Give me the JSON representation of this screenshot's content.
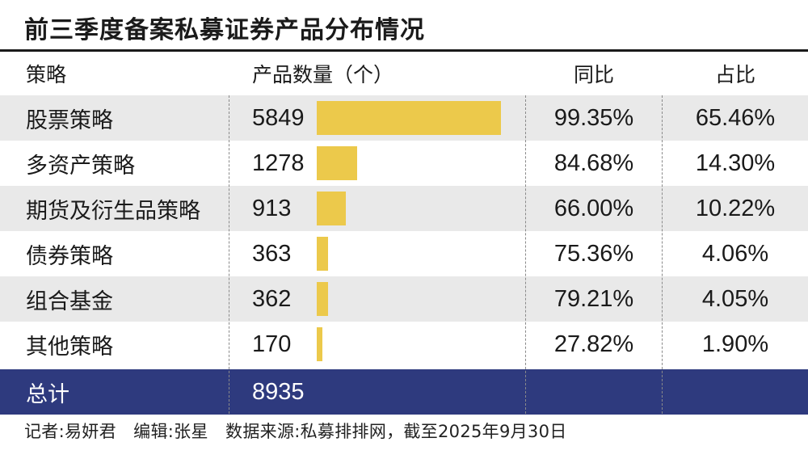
{
  "title": "前三季度备案私募证券产品分布情况",
  "headers": {
    "strategy": "策略",
    "count": "产品数量（个）",
    "yoy": "同比",
    "share": "占比"
  },
  "rows": [
    {
      "strategy": "股票策略",
      "count": "5849",
      "yoy": "99.35%",
      "share": "65.46%"
    },
    {
      "strategy": "多资产策略",
      "count": "1278",
      "yoy": "84.68%",
      "share": "14.30%"
    },
    {
      "strategy": "期货及衍生品策略",
      "count": "913",
      "yoy": "66.00%",
      "share": "10.22%"
    },
    {
      "strategy": "债券策略",
      "count": "363",
      "yoy": "75.36%",
      "share": "4.06%"
    },
    {
      "strategy": "组合基金",
      "count": "362",
      "yoy": "79.21%",
      "share": "4.05%"
    },
    {
      "strategy": "其他策略",
      "count": "170",
      "yoy": "27.82%",
      "share": "1.90%"
    }
  ],
  "total": {
    "label": "总计",
    "count": "8935"
  },
  "footer": "记者:易妍君　编辑:张星　数据来源:私募排排网，截至2025年9月30日",
  "colors": {
    "bar": "#ecc94b",
    "total_bg": "#2e3a7e",
    "shaded_row": "#e9e9e9"
  },
  "chart_data": {
    "type": "bar",
    "orientation": "horizontal",
    "title": "前三季度备案私募证券产品分布情况",
    "categories": [
      "股票策略",
      "多资产策略",
      "期货及衍生品策略",
      "债券策略",
      "组合基金",
      "其他策略"
    ],
    "values": [
      5849,
      1278,
      913,
      363,
      362,
      170
    ],
    "xlim": [
      0,
      5849
    ],
    "grid": false,
    "legend": "none"
  }
}
